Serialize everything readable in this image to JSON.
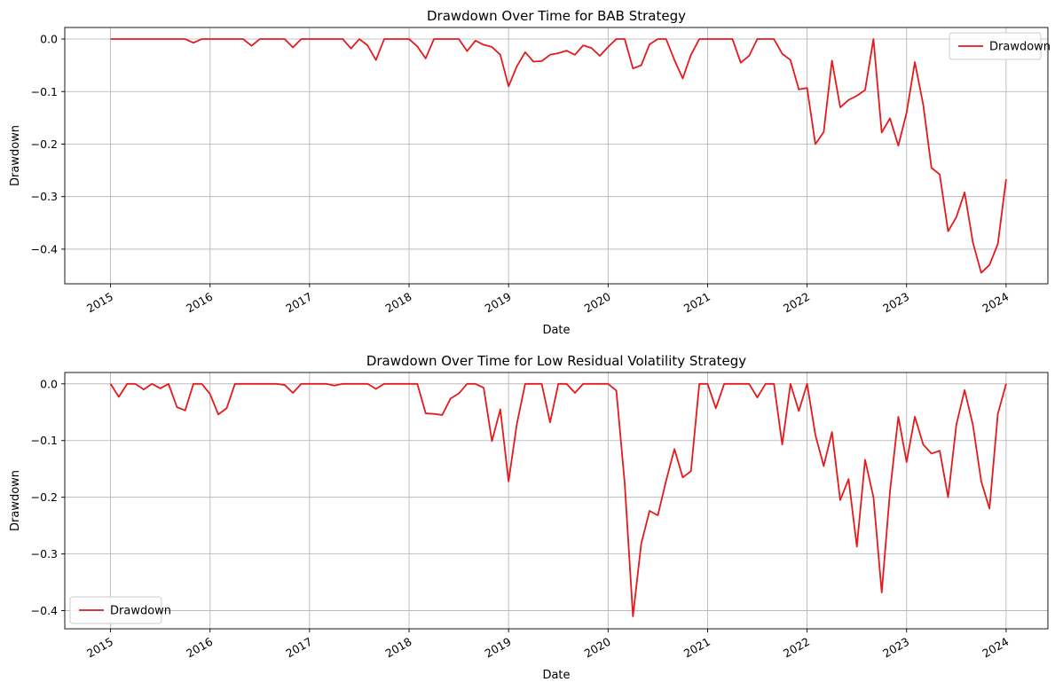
{
  "chart_data": [
    {
      "type": "line",
      "title": "Drawdown Over Time for BAB Strategy",
      "xlabel": "Date",
      "ylabel": "Drawdown",
      "xlim": [
        2014.54,
        2024.42
      ],
      "ylim": [
        -0.466,
        0.022
      ],
      "xticks": [
        2015,
        2016,
        2017,
        2018,
        2019,
        2020,
        2021,
        2022,
        2023,
        2024
      ],
      "xtick_labels": [
        "2015",
        "2016",
        "2017",
        "2018",
        "2019",
        "2020",
        "2021",
        "2022",
        "2023",
        "2024"
      ],
      "yticks": [
        0.0,
        -0.1,
        -0.2,
        -0.3,
        -0.4
      ],
      "ytick_labels": [
        "0.0",
        "−0.1",
        "−0.2",
        "−0.3",
        "−0.4"
      ],
      "grid": true,
      "legend_position": "top-right",
      "series": [
        {
          "name": "Drawdown",
          "color": "#e41a1c",
          "x": [
            2015.0,
            2015.083,
            2015.167,
            2015.25,
            2015.333,
            2015.417,
            2015.5,
            2015.583,
            2015.667,
            2015.75,
            2015.833,
            2015.917,
            2016.0,
            2016.083,
            2016.167,
            2016.25,
            2016.333,
            2016.417,
            2016.5,
            2016.583,
            2016.667,
            2016.75,
            2016.833,
            2016.917,
            2017.0,
            2017.083,
            2017.167,
            2017.25,
            2017.333,
            2017.417,
            2017.5,
            2017.583,
            2017.667,
            2017.75,
            2017.833,
            2017.917,
            2018.0,
            2018.083,
            2018.167,
            2018.25,
            2018.333,
            2018.417,
            2018.5,
            2018.583,
            2018.667,
            2018.75,
            2018.833,
            2018.917,
            2019.0,
            2019.083,
            2019.167,
            2019.25,
            2019.333,
            2019.417,
            2019.5,
            2019.583,
            2019.667,
            2019.75,
            2019.833,
            2019.917,
            2020.0,
            2020.083,
            2020.167,
            2020.25,
            2020.333,
            2020.417,
            2020.5,
            2020.583,
            2020.667,
            2020.75,
            2020.833,
            2020.917,
            2021.0,
            2021.083,
            2021.167,
            2021.25,
            2021.333,
            2021.417,
            2021.5,
            2021.583,
            2021.667,
            2021.75,
            2021.833,
            2021.917,
            2022.0,
            2022.083,
            2022.167,
            2022.25,
            2022.333,
            2022.417,
            2022.5,
            2022.583,
            2022.667,
            2022.75,
            2022.833,
            2022.917,
            2023.0,
            2023.083,
            2023.167,
            2023.25,
            2023.333,
            2023.417,
            2023.5,
            2023.583,
            2023.667,
            2023.75,
            2023.833,
            2023.917,
            2024.0
          ],
          "y": [
            0,
            0,
            0,
            0,
            0,
            0,
            0,
            0,
            0,
            0,
            -0.007,
            0,
            0,
            0,
            0,
            0,
            0,
            -0.013,
            0,
            0,
            0,
            0,
            -0.016,
            0,
            0,
            0,
            0,
            0,
            0,
            -0.018,
            0,
            -0.012,
            -0.04,
            0,
            0,
            0,
            0,
            -0.014,
            -0.037,
            0,
            0,
            0,
            0,
            -0.023,
            -0.003,
            -0.011,
            -0.015,
            -0.03,
            -0.09,
            -0.052,
            -0.025,
            -0.043,
            -0.042,
            -0.03,
            -0.027,
            -0.022,
            -0.03,
            -0.012,
            -0.017,
            -0.032,
            -0.015,
            0,
            0,
            -0.056,
            -0.05,
            -0.01,
            0,
            0,
            -0.04,
            -0.075,
            -0.03,
            0,
            0,
            0,
            0,
            0,
            -0.045,
            -0.032,
            0,
            0,
            0,
            -0.028,
            -0.04,
            -0.096,
            -0.093,
            -0.2,
            -0.177,
            -0.041,
            -0.13,
            -0.116,
            -0.108,
            -0.097,
            0,
            -0.178,
            -0.151,
            -0.203,
            -0.14,
            -0.044,
            -0.125,
            -0.245,
            -0.258,
            -0.366,
            -0.339,
            -0.292,
            -0.388,
            -0.445,
            -0.43,
            -0.39,
            -0.267
          ]
        }
      ]
    },
    {
      "type": "line",
      "title": "Drawdown Over Time for Low Residual Volatility Strategy",
      "xlabel": "Date",
      "ylabel": "Drawdown",
      "xlim": [
        2014.54,
        2024.42
      ],
      "ylim": [
        -0.432,
        0.02
      ],
      "xticks": [
        2015,
        2016,
        2017,
        2018,
        2019,
        2020,
        2021,
        2022,
        2023,
        2024
      ],
      "xtick_labels": [
        "2015",
        "2016",
        "2017",
        "2018",
        "2019",
        "2020",
        "2021",
        "2022",
        "2023",
        "2024"
      ],
      "yticks": [
        0.0,
        -0.1,
        -0.2,
        -0.3,
        -0.4
      ],
      "ytick_labels": [
        "0.0",
        "−0.1",
        "−0.2",
        "−0.3",
        "−0.4"
      ],
      "grid": true,
      "legend_position": "bottom-left",
      "series": [
        {
          "name": "Drawdown",
          "color": "#e41a1c",
          "x": [
            2015.0,
            2015.083,
            2015.167,
            2015.25,
            2015.333,
            2015.417,
            2015.5,
            2015.583,
            2015.667,
            2015.75,
            2015.833,
            2015.917,
            2016.0,
            2016.083,
            2016.167,
            2016.25,
            2016.333,
            2016.417,
            2016.5,
            2016.583,
            2016.667,
            2016.75,
            2016.833,
            2016.917,
            2017.0,
            2017.083,
            2017.167,
            2017.25,
            2017.333,
            2017.417,
            2017.5,
            2017.583,
            2017.667,
            2017.75,
            2017.833,
            2017.917,
            2018.0,
            2018.083,
            2018.167,
            2018.25,
            2018.333,
            2018.417,
            2018.5,
            2018.583,
            2018.667,
            2018.75,
            2018.833,
            2018.917,
            2019.0,
            2019.083,
            2019.167,
            2019.25,
            2019.333,
            2019.417,
            2019.5,
            2019.583,
            2019.667,
            2019.75,
            2019.833,
            2019.917,
            2020.0,
            2020.083,
            2020.167,
            2020.25,
            2020.333,
            2020.417,
            2020.5,
            2020.583,
            2020.667,
            2020.75,
            2020.833,
            2020.917,
            2021.0,
            2021.083,
            2021.167,
            2021.25,
            2021.333,
            2021.417,
            2021.5,
            2021.583,
            2021.667,
            2021.75,
            2021.833,
            2021.917,
            2022.0,
            2022.083,
            2022.167,
            2022.25,
            2022.333,
            2022.417,
            2022.5,
            2022.583,
            2022.667,
            2022.75,
            2022.833,
            2022.917,
            2023.0,
            2023.083,
            2023.167,
            2023.25,
            2023.333,
            2023.417,
            2023.5,
            2023.583,
            2023.667,
            2023.75,
            2023.833,
            2023.917,
            2024.0
          ],
          "y": [
            0,
            -0.023,
            0,
            0,
            -0.01,
            0,
            -0.008,
            0,
            -0.041,
            -0.047,
            0,
            0,
            -0.018,
            -0.054,
            -0.043,
            0,
            0,
            0,
            0,
            0,
            0,
            -0.002,
            -0.016,
            0,
            0,
            0,
            0,
            -0.003,
            0,
            0,
            0,
            0,
            -0.009,
            0,
            0,
            0,
            0,
            0,
            -0.052,
            -0.053,
            -0.055,
            -0.026,
            -0.017,
            0,
            0,
            -0.007,
            -0.101,
            -0.045,
            -0.172,
            -0.071,
            0,
            0,
            0,
            -0.068,
            0,
            0,
            -0.016,
            0,
            0,
            0,
            0,
            -0.012,
            -0.175,
            -0.41,
            -0.282,
            -0.224,
            -0.232,
            -0.171,
            -0.115,
            -0.165,
            -0.154,
            0,
            0,
            -0.043,
            0,
            0,
            0,
            0,
            -0.024,
            0,
            0,
            -0.107,
            0,
            -0.048,
            0,
            -0.09,
            -0.145,
            -0.085,
            -0.205,
            -0.168,
            -0.287,
            -0.134,
            -0.2,
            -0.368,
            -0.19,
            -0.058,
            -0.138,
            -0.058,
            -0.107,
            -0.123,
            -0.118,
            -0.2,
            -0.072,
            -0.011,
            -0.073,
            -0.172,
            -0.22,
            -0.053,
            0
          ]
        }
      ]
    }
  ]
}
